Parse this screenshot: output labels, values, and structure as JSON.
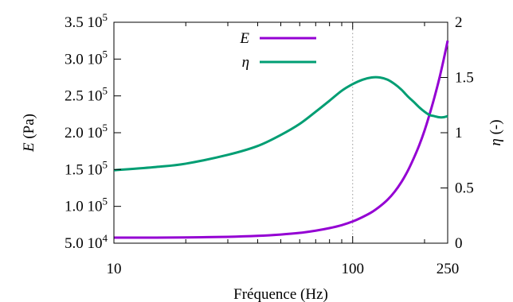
{
  "chart_data": {
    "type": "line",
    "title": "",
    "xlabel": "Fréquence (Hz)",
    "x_scale": "log",
    "xlim": [
      10,
      250
    ],
    "x_ticks": [
      10,
      100,
      250
    ],
    "x_tick_labels": [
      "10",
      "100",
      "250"
    ],
    "ylabel": "E (Pa)",
    "ylabel_symbol": "E",
    "ylabel_unit": " (Pa)",
    "ylim": [
      50000,
      350000
    ],
    "y_ticks": [
      50000,
      100000,
      150000,
      200000,
      250000,
      300000,
      350000
    ],
    "y_tick_labels": [
      {
        "mantissa": "5.0 10",
        "exp": "4"
      },
      {
        "mantissa": "1.0 10",
        "exp": "5"
      },
      {
        "mantissa": "1.5 10",
        "exp": "5"
      },
      {
        "mantissa": "2.0 10",
        "exp": "5"
      },
      {
        "mantissa": "2.5 10",
        "exp": "5"
      },
      {
        "mantissa": "3.0 10",
        "exp": "5"
      },
      {
        "mantissa": "3.5 10",
        "exp": "5"
      }
    ],
    "y2label": "η (-)",
    "y2label_symbol": "η",
    "y2label_unit": " (-)",
    "y2lim": [
      0,
      2
    ],
    "y2_ticks": [
      0,
      0.5,
      1,
      1.5,
      2
    ],
    "y2_tick_labels": [
      "0",
      "0.5",
      "1",
      "1.5",
      "2"
    ],
    "grid": false,
    "reference_line_x": 100,
    "legend_position": "top-center",
    "series": [
      {
        "name": "E",
        "axis": "left",
        "color": "#9400d3",
        "x": [
          10,
          15,
          20,
          30,
          40,
          50,
          60,
          70,
          80,
          90,
          100,
          110,
          120,
          130,
          140,
          150,
          160,
          170,
          180,
          190,
          200,
          210,
          220,
          230,
          240,
          250
        ],
        "y": [
          57500,
          57600,
          57800,
          58700,
          60000,
          61800,
          64000,
          67000,
          70500,
          74500,
          79500,
          85500,
          92000,
          100000,
          109000,
          120000,
          133000,
          148000,
          165000,
          183000,
          203000,
          225000,
          248000,
          272000,
          298000,
          325000
        ]
      },
      {
        "name": "η",
        "axis": "right",
        "color": "#009e73",
        "x": [
          10,
          15,
          20,
          30,
          40,
          50,
          60,
          70,
          80,
          90,
          100,
          110,
          120,
          130,
          140,
          150,
          160,
          170,
          180,
          190,
          200,
          210,
          220,
          230,
          240,
          250
        ],
        "y": [
          0.66,
          0.69,
          0.72,
          0.8,
          0.88,
          0.98,
          1.08,
          1.19,
          1.29,
          1.38,
          1.44,
          1.48,
          1.5,
          1.5,
          1.48,
          1.44,
          1.39,
          1.33,
          1.28,
          1.23,
          1.19,
          1.16,
          1.15,
          1.14,
          1.14,
          1.15
        ]
      }
    ]
  }
}
